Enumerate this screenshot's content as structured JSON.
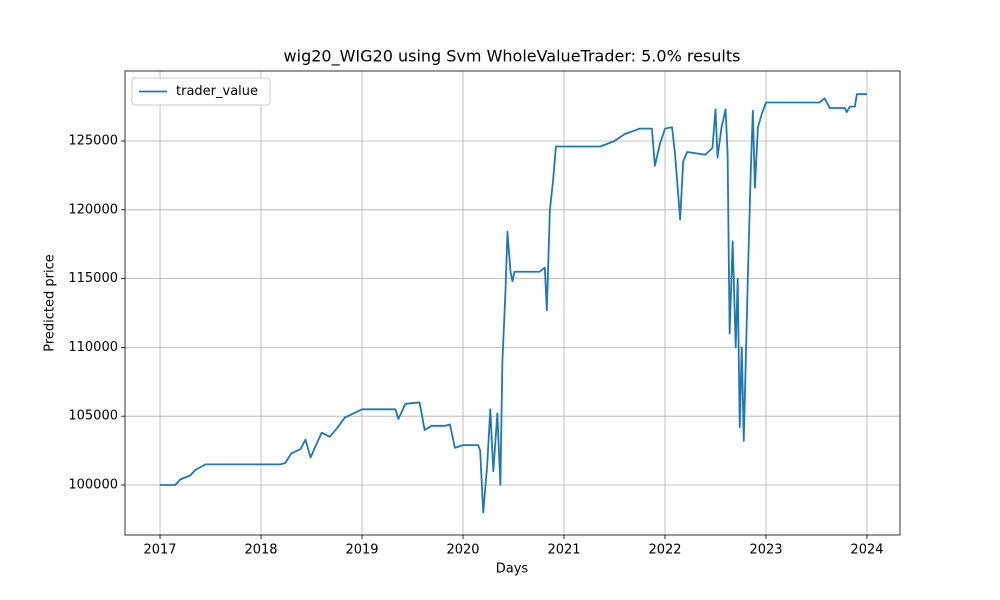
{
  "chart_data": {
    "type": "line",
    "title": "wig20_WIG20 using Svm WholeValueTrader: 5.0% results",
    "x_label": "Days",
    "y_label": "Predicted price",
    "x": [
      2017.0,
      2017.15,
      2017.2,
      2017.3,
      2017.35,
      2017.45,
      2018.19,
      2018.24,
      2018.3,
      2018.39,
      2018.44,
      2018.49,
      2018.6,
      2018.68,
      2018.75,
      2018.83,
      2019.0,
      2019.33,
      2019.36,
      2019.43,
      2019.57,
      2019.62,
      2019.69,
      2019.82,
      2019.87,
      2019.92,
      2020.0,
      2020.15,
      2020.17,
      2020.2,
      2020.24,
      2020.27,
      2020.3,
      2020.34,
      2020.37,
      2020.39,
      2020.42,
      2020.44,
      2020.47,
      2020.49,
      2020.51,
      2020.76,
      2020.81,
      2020.83,
      2020.86,
      2020.89,
      2020.92,
      2021.36,
      2021.5,
      2021.6,
      2021.75,
      2021.87,
      2021.9,
      2021.95,
      2022.0,
      2022.07,
      2022.1,
      2022.15,
      2022.18,
      2022.22,
      2022.4,
      2022.47,
      2022.5,
      2022.52,
      2022.56,
      2022.6,
      2022.62,
      2022.64,
      2022.67,
      2022.7,
      2022.72,
      2022.74,
      2022.76,
      2022.78,
      2022.82,
      2022.85,
      2022.87,
      2022.89,
      2022.92,
      2022.96,
      2023.0,
      2023.53,
      2023.58,
      2023.63,
      2023.78,
      2023.8,
      2023.83,
      2023.88,
      2023.9,
      2024.0
    ],
    "series": [
      {
        "name": "trader_value",
        "color": "#1f77b4",
        "values": [
          100000,
          100000,
          100400,
          100700,
          101100,
          101500,
          101500,
          101600,
          102300,
          102600,
          103300,
          102000,
          103800,
          103500,
          104100,
          104900,
          105500,
          105500,
          104800,
          105900,
          106000,
          104000,
          104300,
          104300,
          104400,
          102700,
          102900,
          102900,
          102500,
          98000,
          101500,
          105500,
          101000,
          105200,
          100000,
          109000,
          114000,
          118400,
          115500,
          114800,
          115500,
          115500,
          115800,
          112700,
          120000,
          122000,
          124600,
          124600,
          125000,
          125500,
          125900,
          125900,
          123200,
          124800,
          125900,
          126000,
          124000,
          119300,
          123500,
          124200,
          124000,
          124500,
          127300,
          123800,
          126000,
          127300,
          124000,
          111000,
          117700,
          110000,
          115000,
          104200,
          110000,
          103200,
          115000,
          123000,
          127200,
          121600,
          126000,
          127000,
          127800,
          127800,
          128100,
          127400,
          127400,
          127100,
          127500,
          127500,
          128400,
          128400
        ]
      }
    ],
    "xlim": [
      2016.653,
      2024.327
    ],
    "xticks": [
      2017,
      2018,
      2019,
      2020,
      2021,
      2022,
      2023,
      2024
    ],
    "ylim": [
      96366,
      130087
    ],
    "yticks": [
      100000,
      105000,
      110000,
      115000,
      120000,
      125000
    ],
    "grid": true,
    "legend": "upper left"
  }
}
